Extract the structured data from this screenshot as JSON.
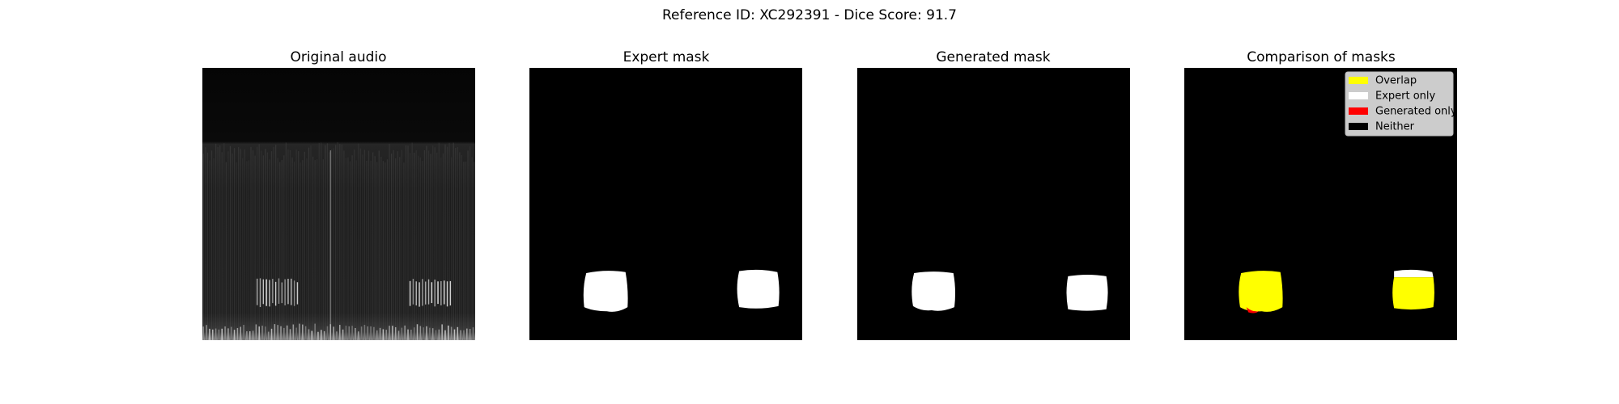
{
  "title": "Reference ID: XC292391 - Dice Score: 91.7",
  "panels": [
    {
      "title": "Original audio"
    },
    {
      "title": "Expert mask"
    },
    {
      "title": "Generated mask"
    },
    {
      "title": "Comparison of masks"
    }
  ],
  "legend": [
    "Overlap",
    "Expert only",
    "Generated only",
    "Neither"
  ]
}
